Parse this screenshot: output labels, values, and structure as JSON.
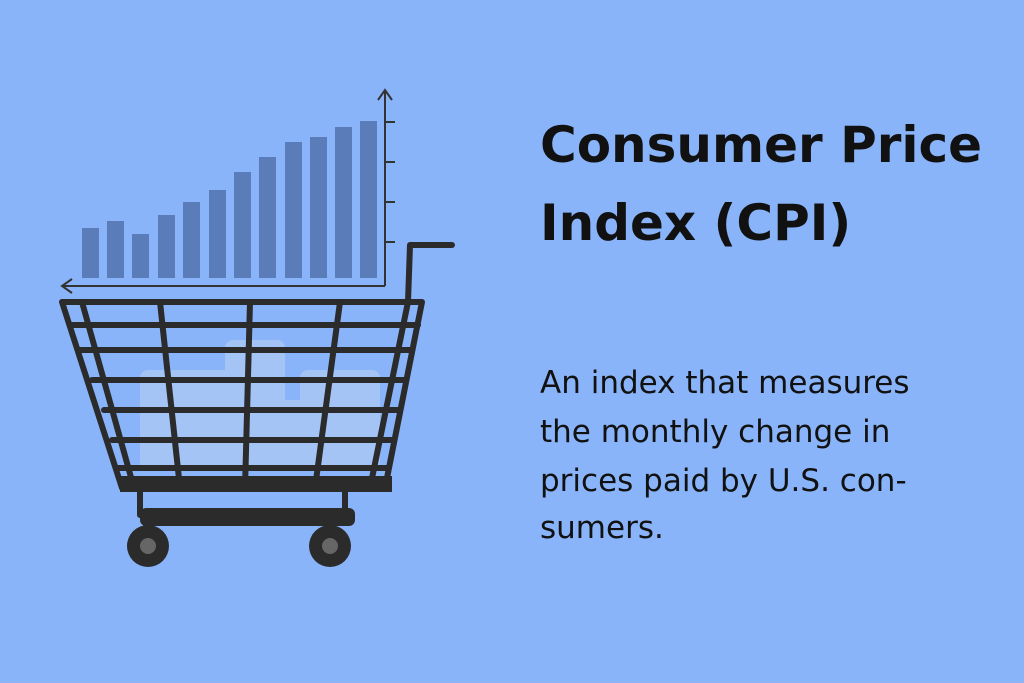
{
  "title_lines": [
    "Consumer Price",
    "Index (CPI)"
  ],
  "description_lines": [
    "An index that measures",
    "the monthly change in",
    "prices paid by U.S. con-",
    "sumers."
  ]
}
